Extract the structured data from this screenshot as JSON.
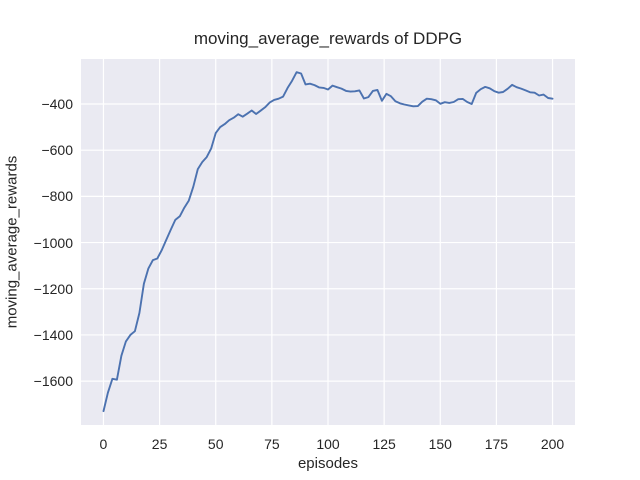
{
  "chart": {
    "title": "moving_average_rewards of DDPG",
    "xlabel": "episodes",
    "ylabel": "moving_average_rewards"
  },
  "chart_data": {
    "type": "line",
    "title": "moving_average_rewards of DDPG",
    "xlabel": "episodes",
    "ylabel": "moving_average_rewards",
    "xlim": [
      -10,
      210
    ],
    "ylim": [
      -1790,
      -205
    ],
    "xticks": [
      0,
      25,
      50,
      75,
      100,
      125,
      150,
      175,
      200
    ],
    "yticks": [
      -400,
      -600,
      -800,
      -1000,
      -1200,
      -1400,
      -1600
    ],
    "grid": true,
    "legend_position": "none",
    "style": {
      "axes_background": "#EAEAF2",
      "grid_color": "#FFFFFF",
      "line_color": "#4C72B0",
      "text_color": "#262626",
      "figure_background": "#FFFFFF"
    },
    "series": [
      {
        "name": "moving_average_rewards",
        "x": [
          0,
          2,
          4,
          6,
          8,
          10,
          12,
          14,
          16,
          18,
          20,
          22,
          24,
          26,
          28,
          30,
          32,
          34,
          36,
          38,
          40,
          42,
          44,
          46,
          48,
          50,
          52,
          54,
          56,
          58,
          60,
          62,
          64,
          66,
          68,
          70,
          72,
          74,
          76,
          78,
          80,
          82,
          84,
          86,
          88,
          90,
          92,
          94,
          96,
          98,
          100,
          102,
          104,
          106,
          108,
          110,
          112,
          114,
          116,
          118,
          120,
          122,
          124,
          126,
          128,
          130,
          132,
          134,
          136,
          138,
          140,
          142,
          144,
          146,
          148,
          150,
          152,
          154,
          156,
          158,
          160,
          162,
          164,
          166,
          168,
          170,
          172,
          174,
          176,
          178,
          180,
          182,
          184,
          186,
          188,
          190,
          192,
          194,
          196,
          198,
          200
        ],
        "y": [
          -1730,
          -1650,
          -1590,
          -1594,
          -1490,
          -1428,
          -1400,
          -1384,
          -1305,
          -1178,
          -1112,
          -1076,
          -1069,
          -1032,
          -988,
          -944,
          -902,
          -886,
          -849,
          -818,
          -758,
          -682,
          -651,
          -630,
          -592,
          -526,
          -500,
          -487,
          -470,
          -459,
          -444,
          -455,
          -442,
          -428,
          -443,
          -429,
          -414,
          -394,
          -382,
          -377,
          -368,
          -330,
          -299,
          -262,
          -268,
          -315,
          -312,
          -318,
          -328,
          -330,
          -337,
          -320,
          -327,
          -333,
          -343,
          -346,
          -345,
          -341,
          -376,
          -370,
          -343,
          -339,
          -386,
          -356,
          -366,
          -388,
          -397,
          -402,
          -406,
          -410,
          -409,
          -390,
          -377,
          -379,
          -384,
          -399,
          -392,
          -395,
          -391,
          -379,
          -378,
          -391,
          -400,
          -352,
          -336,
          -326,
          -332,
          -344,
          -351,
          -348,
          -334,
          -317,
          -327,
          -333,
          -341,
          -349,
          -351,
          -363,
          -359,
          -374,
          -377
        ]
      }
    ]
  }
}
